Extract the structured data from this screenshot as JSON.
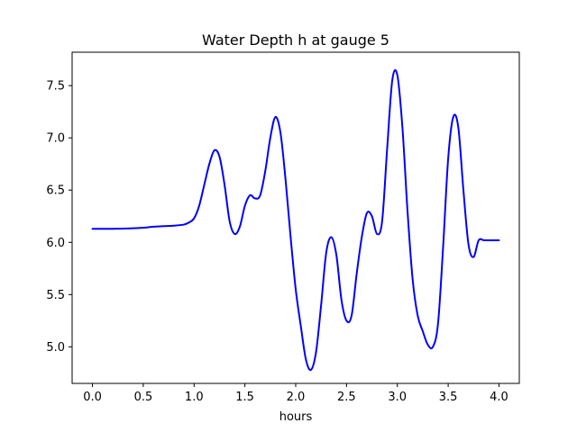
{
  "chart_data": {
    "type": "line",
    "title": "Water Depth h at gauge 5",
    "xlabel": "hours",
    "ylabel": "",
    "xlim": [
      -0.2,
      4.2
    ],
    "ylim": [
      4.65,
      7.82
    ],
    "xticks": [
      0.0,
      0.5,
      1.0,
      1.5,
      2.0,
      2.5,
      3.0,
      3.5,
      4.0
    ],
    "xtick_labels": [
      "0.0",
      "0.5",
      "1.0",
      "1.5",
      "2.0",
      "2.5",
      "3.0",
      "3.5",
      "4.0"
    ],
    "yticks": [
      5.0,
      5.5,
      6.0,
      6.5,
      7.0,
      7.5
    ],
    "ytick_labels": [
      "5.0",
      "5.5",
      "6.0",
      "6.5",
      "7.0",
      "7.5"
    ],
    "grid": false,
    "series": [
      {
        "color": "#0000ff",
        "x": [
          0.0,
          0.2,
          0.4,
          0.5,
          0.6,
          0.7,
          0.8,
          0.9,
          0.95,
          1.0,
          1.05,
          1.1,
          1.15,
          1.2,
          1.25,
          1.3,
          1.35,
          1.4,
          1.45,
          1.5,
          1.55,
          1.6,
          1.65,
          1.7,
          1.75,
          1.8,
          1.85,
          1.9,
          1.95,
          2.0,
          2.05,
          2.1,
          2.15,
          2.2,
          2.25,
          2.3,
          2.35,
          2.4,
          2.45,
          2.5,
          2.55,
          2.6,
          2.65,
          2.7,
          2.75,
          2.8,
          2.85,
          2.9,
          2.95,
          3.0,
          3.05,
          3.1,
          3.15,
          3.2,
          3.25,
          3.3,
          3.35,
          3.4,
          3.45,
          3.5,
          3.55,
          3.6,
          3.65,
          3.7,
          3.75,
          3.8,
          3.85,
          3.9,
          3.95,
          4.0
        ],
        "y": [
          6.13,
          6.13,
          6.135,
          6.14,
          6.15,
          6.155,
          6.16,
          6.17,
          6.19,
          6.23,
          6.35,
          6.55,
          6.75,
          6.88,
          6.82,
          6.55,
          6.2,
          6.08,
          6.15,
          6.35,
          6.45,
          6.42,
          6.45,
          6.68,
          7.0,
          7.2,
          7.05,
          6.6,
          6.05,
          5.55,
          5.2,
          4.88,
          4.78,
          4.95,
          5.4,
          5.9,
          6.05,
          5.88,
          5.45,
          5.25,
          5.3,
          5.7,
          6.05,
          6.28,
          6.25,
          6.08,
          6.2,
          6.9,
          7.55,
          7.6,
          7.1,
          6.3,
          5.65,
          5.3,
          5.15,
          5.02,
          5.0,
          5.22,
          5.95,
          6.8,
          7.2,
          7.1,
          6.5,
          5.98,
          5.86,
          6.02,
          6.02,
          6.02,
          6.02,
          6.02
        ]
      }
    ]
  }
}
